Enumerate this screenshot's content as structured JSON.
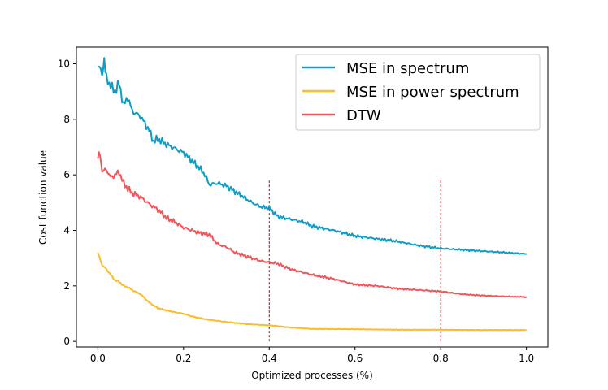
{
  "chart_data": {
    "type": "line",
    "title": "",
    "xlabel": "Optimized processes (%)",
    "ylabel": "Cost function value",
    "xlim": [
      -0.05,
      1.05
    ],
    "ylim": [
      -0.2,
      10.6
    ],
    "xticks": [
      0.0,
      0.2,
      0.4,
      0.6,
      0.8,
      1.0
    ],
    "xtick_labels": [
      "0.0",
      "0.2",
      "0.4",
      "0.6",
      "0.8",
      "1.0"
    ],
    "yticks": [
      0,
      2,
      4,
      6,
      8,
      10
    ],
    "ytick_labels": [
      "0",
      "2",
      "4",
      "6",
      "8",
      "10"
    ],
    "grid": false,
    "legend_position": "top-right",
    "vertical_lines": [
      {
        "x": 0.4,
        "ymin": 0.0,
        "ymax": 5.8,
        "color": "#a50f15",
        "style": "dashed"
      },
      {
        "x": 0.8,
        "ymin": 0.0,
        "ymax": 5.8,
        "color": "#a50f15",
        "style": "dashed"
      }
    ],
    "series": [
      {
        "name": "MSE in spectrum",
        "color": "#0e9cc5",
        "x": [
          0,
          0.01,
          0.015,
          0.02,
          0.03,
          0.04,
          0.05,
          0.06,
          0.07,
          0.08,
          0.1,
          0.12,
          0.13,
          0.14,
          0.16,
          0.18,
          0.2,
          0.22,
          0.24,
          0.25,
          0.26,
          0.28,
          0.3,
          0.32,
          0.34,
          0.36,
          0.38,
          0.4,
          0.42,
          0.45,
          0.48,
          0.5,
          0.55,
          0.6,
          0.65,
          0.7,
          0.75,
          0.8,
          0.85,
          0.9,
          0.95,
          1.0
        ],
        "values": [
          9.9,
          9.7,
          10.1,
          9.5,
          9.2,
          9.0,
          9.3,
          8.5,
          8.8,
          8.3,
          8.1,
          7.6,
          7.2,
          7.3,
          7.1,
          6.95,
          6.8,
          6.5,
          6.2,
          6.0,
          5.65,
          5.7,
          5.6,
          5.4,
          5.2,
          5.0,
          4.85,
          4.8,
          4.5,
          4.4,
          4.3,
          4.15,
          4.0,
          3.8,
          3.7,
          3.6,
          3.45,
          3.35,
          3.3,
          3.25,
          3.2,
          3.15
        ]
      },
      {
        "name": "MSE in power spectrum",
        "color": "#fbbc27",
        "x": [
          0,
          0.01,
          0.02,
          0.03,
          0.04,
          0.05,
          0.06,
          0.07,
          0.08,
          0.1,
          0.12,
          0.14,
          0.16,
          0.18,
          0.2,
          0.22,
          0.25,
          0.3,
          0.35,
          0.4,
          0.45,
          0.5,
          0.6,
          0.7,
          0.8,
          0.9,
          1.0
        ],
        "values": [
          3.2,
          2.75,
          2.6,
          2.4,
          2.2,
          2.15,
          2.0,
          1.95,
          1.85,
          1.7,
          1.4,
          1.2,
          1.12,
          1.05,
          1.0,
          0.9,
          0.8,
          0.7,
          0.62,
          0.58,
          0.5,
          0.45,
          0.44,
          0.42,
          0.42,
          0.41,
          0.41
        ]
      },
      {
        "name": "DTW",
        "color": "#f0565c",
        "x": [
          0,
          0.005,
          0.01,
          0.02,
          0.03,
          0.04,
          0.05,
          0.06,
          0.07,
          0.08,
          0.1,
          0.12,
          0.14,
          0.16,
          0.18,
          0.2,
          0.22,
          0.24,
          0.26,
          0.28,
          0.3,
          0.32,
          0.34,
          0.36,
          0.38,
          0.4,
          0.42,
          0.45,
          0.5,
          0.55,
          0.6,
          0.65,
          0.7,
          0.75,
          0.8,
          0.85,
          0.9,
          0.95,
          1.0
        ],
        "values": [
          6.6,
          6.75,
          6.1,
          6.2,
          5.9,
          6.0,
          6.1,
          5.7,
          5.5,
          5.35,
          5.2,
          4.95,
          4.75,
          4.45,
          4.3,
          4.1,
          4.0,
          3.9,
          3.85,
          3.5,
          3.4,
          3.2,
          3.1,
          3.0,
          2.9,
          2.85,
          2.8,
          2.6,
          2.4,
          2.25,
          2.05,
          2.0,
          1.9,
          1.85,
          1.8,
          1.7,
          1.65,
          1.62,
          1.6
        ]
      }
    ]
  }
}
